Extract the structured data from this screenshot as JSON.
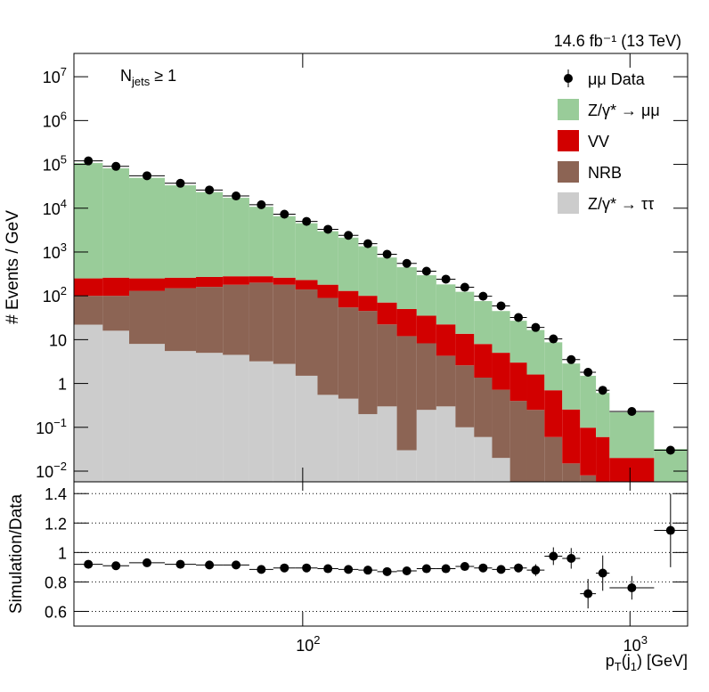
{
  "chart_data": {
    "type": "stacked_histogram",
    "lumi_text": "14.6 fb⁻¹ (13 TeV)",
    "annotation_parts": [
      "N",
      "jets",
      " ≥ 1"
    ],
    "y_label": "# Events / GeV",
    "x_label_parts": [
      "p",
      "T",
      "(j",
      "1",
      ") [GeV]"
    ],
    "log_x": true,
    "log_y": true,
    "xlim": [
      20,
      1500
    ],
    "ylim": [
      0.0057,
      34000000
    ],
    "xticks": [
      {
        "value": 100,
        "label": "10",
        "sup": "2"
      },
      {
        "value": 1000,
        "label": "10",
        "sup": "3"
      }
    ],
    "yticks": [
      {
        "value": 0.01,
        "label": "10",
        "sup": "−2"
      },
      {
        "value": 0.1,
        "label": "10",
        "sup": "−1"
      },
      1,
      10,
      {
        "value": 100,
        "label": "10",
        "sup": "2"
      },
      {
        "value": 1000,
        "label": "10",
        "sup": "3"
      },
      {
        "value": 10000,
        "label": "10",
        "sup": "4"
      },
      {
        "value": 100000,
        "label": "10",
        "sup": "5"
      },
      {
        "value": 1000000,
        "label": "10",
        "sup": "6"
      },
      {
        "value": 10000000,
        "label": "10",
        "sup": "7"
      }
    ],
    "bins": [
      20,
      24.5,
      29.5,
      37.9,
      47.2,
      57,
      68.7,
      81.3,
      95.1,
      111,
      128.5,
      148,
      169,
      194,
      223,
      256,
      293,
      334,
      379,
      430,
      484,
      548,
      621,
      704,
      787,
      866,
      1185,
      1493
    ],
    "series": [
      {
        "name": "Z/γ* → ττ",
        "color": "#cccccc",
        "values": [
          22,
          16,
          8,
          5.5,
          5,
          4.5,
          3.2,
          2.8,
          1.5,
          0.55,
          0.45,
          0.2,
          0.3,
          0.03,
          0.25,
          0.3,
          0.1,
          0.06,
          0.02,
          0,
          0,
          0,
          0,
          0,
          0,
          0,
          0
        ]
      },
      {
        "name": "NRB",
        "color": "#8c6454",
        "values": [
          78,
          84,
          122,
          144,
          155,
          175,
          197,
          177,
          138,
          89,
          54,
          45,
          22,
          12,
          8,
          4,
          2.5,
          1.3,
          0.7,
          0.4,
          0.25,
          0.06,
          0.015,
          0.008,
          0.005,
          0,
          0
        ]
      },
      {
        "name": "VV",
        "color": "#d20000",
        "values": [
          150,
          160,
          120,
          110,
          110,
          100,
          80,
          80,
          90,
          90,
          75,
          55,
          48,
          38,
          27,
          18,
          11,
          6.6,
          4.3,
          2.6,
          1.35,
          0.64,
          0.24,
          0.09,
          0.055,
          0.02,
          0
        ]
      },
      {
        "name": "Z/γ* → μμ",
        "color": "#99cc99",
        "values": [
          107000,
          81000,
          49000,
          33000,
          23000,
          17000,
          10500,
          6300,
          4300,
          2800,
          2000,
          1250,
          680,
          400,
          260,
          160,
          110,
          68,
          40,
          24,
          15,
          8,
          2.6,
          1.4,
          0.55,
          0.2,
          0.032
        ]
      }
    ],
    "data": {
      "name": "μμ Data",
      "color": "#000000",
      "values": [
        120000,
        90000,
        55000,
        37000,
        26000,
        19000,
        12000,
        7300,
        5000,
        3300,
        2400,
        1550,
        890,
        550,
        365,
        240,
        157,
        98,
        59,
        32,
        19,
        10.4,
        3.5,
        1.8,
        0.7,
        0.23,
        0.03
      ]
    },
    "ratio": {
      "y_label": "Simulation/Data",
      "ylim": [
        0.5,
        1.48
      ],
      "yticks": [
        0.6,
        0.8,
        1,
        1.2,
        1.4
      ],
      "grid": true,
      "values": [
        0.92,
        0.91,
        0.93,
        0.92,
        0.915,
        0.915,
        0.885,
        0.895,
        0.895,
        0.89,
        0.885,
        0.88,
        0.87,
        0.875,
        0.89,
        0.89,
        0.905,
        0.895,
        0.885,
        0.895,
        0.88,
        0.975,
        0.96,
        0.72,
        0.86,
        0.76,
        1.15
      ],
      "errors": [
        0.005,
        0.005,
        0.005,
        0.005,
        0.005,
        0.006,
        0.006,
        0.007,
        0.008,
        0.009,
        0.01,
        0.01,
        0.012,
        0.014,
        0.016,
        0.018,
        0.02,
        0.022,
        0.025,
        0.03,
        0.04,
        0.06,
        0.07,
        0.1,
        0.12,
        0.08,
        0.25
      ]
    }
  }
}
